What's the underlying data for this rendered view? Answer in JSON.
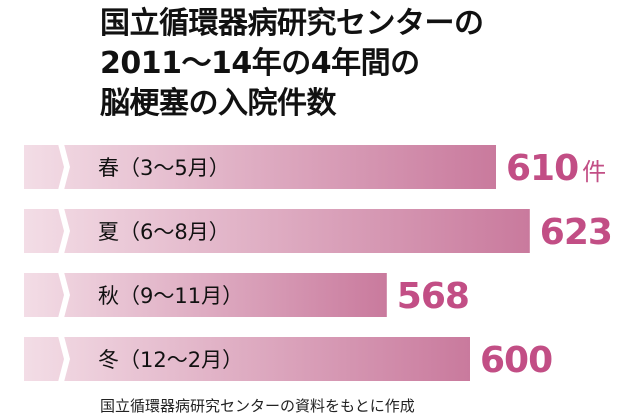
{
  "chart_data": {
    "type": "bar",
    "orientation": "horizontal",
    "title": [
      "国立循環器病研究センターの",
      "2011～14年の4年間の",
      "脳梗塞の入院件数"
    ],
    "categories": [
      "春（3～5月）",
      "夏（6～8月）",
      "秋（9～11月）",
      "冬（12～2月）"
    ],
    "values": [
      610,
      623,
      568,
      600
    ],
    "value_labels": [
      "610",
      "623",
      "568",
      "600"
    ],
    "unit": "件",
    "axis_break": true,
    "bar_color_start": "#f3dde6",
    "bar_color_end": "#c97a9d",
    "value_label_color": "#c24e85"
  },
  "source": "国立循環器病研究センターの資料をもとに作成"
}
